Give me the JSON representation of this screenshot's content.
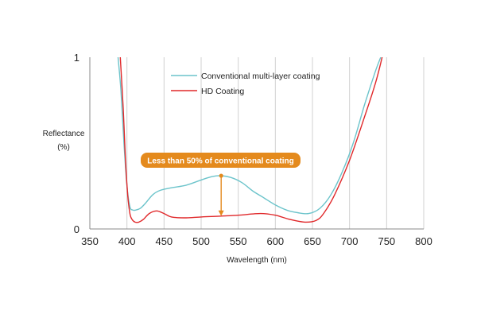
{
  "chart_data": {
    "type": "line",
    "title": "",
    "xlabel": "Wavelength (nm)",
    "ylabel_line1": "Reflectance",
    "ylabel_line2": "(%)",
    "xlim": [
      350,
      800
    ],
    "ylim": [
      0,
      1
    ],
    "x_ticks": [
      350,
      400,
      450,
      500,
      550,
      600,
      650,
      700,
      750,
      800
    ],
    "x_tick_labels": [
      "350",
      "400",
      "450",
      "500",
      "550",
      "600",
      "650",
      "700",
      "750",
      "800"
    ],
    "y_ticks": [
      0,
      1
    ],
    "y_tick_labels": [
      "0",
      "1"
    ],
    "grid": "vertical",
    "legend_position": "top-left",
    "series": [
      {
        "name": "Conventional multi-layer coating",
        "color": "#6cc4cb",
        "x": [
          388,
          392,
          396,
          400,
          404,
          408,
          412,
          418,
          425,
          435,
          445,
          460,
          480,
          500,
          515,
          527,
          540,
          555,
          570,
          585,
          600,
          615,
          630,
          645,
          660,
          675,
          690,
          705,
          720,
          735,
          742
        ],
        "y": [
          1.0,
          0.8,
          0.5,
          0.25,
          0.13,
          0.11,
          0.11,
          0.12,
          0.15,
          0.2,
          0.225,
          0.24,
          0.255,
          0.285,
          0.305,
          0.31,
          0.3,
          0.27,
          0.22,
          0.18,
          0.14,
          0.11,
          0.095,
          0.09,
          0.12,
          0.2,
          0.33,
          0.5,
          0.72,
          0.92,
          1.0
        ]
      },
      {
        "name": "HD Coating",
        "color": "#e0282a",
        "x": [
          391,
          395,
          398,
          401,
          404,
          407,
          411,
          416,
          422,
          430,
          440,
          450,
          460,
          480,
          500,
          527,
          550,
          580,
          600,
          620,
          640,
          655,
          665,
          680,
          700,
          720,
          735,
          744
        ],
        "y": [
          1.0,
          0.7,
          0.4,
          0.2,
          0.09,
          0.055,
          0.04,
          0.04,
          0.055,
          0.09,
          0.105,
          0.09,
          0.07,
          0.065,
          0.07,
          0.075,
          0.08,
          0.09,
          0.08,
          0.055,
          0.04,
          0.05,
          0.09,
          0.2,
          0.4,
          0.65,
          0.85,
          1.0
        ]
      }
    ],
    "annotation": {
      "text": "Less than 50% of conventional coating",
      "x": 527,
      "y_from": 0.31,
      "y_to": 0.075,
      "color": "#e48a1d"
    }
  }
}
